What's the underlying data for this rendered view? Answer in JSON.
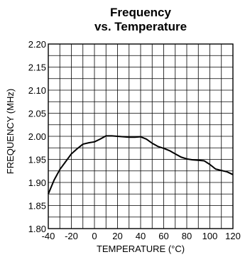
{
  "chart_data": {
    "type": "line",
    "title_lines": [
      "Frequency",
      "vs. Temperature"
    ],
    "xlabel": "TEMPERATURE (°C)",
    "ylabel": "FREQUENCY (MHz)",
    "xlim": [
      -40,
      120
    ],
    "ylim": [
      1.8,
      2.2
    ],
    "x_ticks": [
      -40,
      -20,
      0,
      20,
      40,
      60,
      80,
      100,
      120
    ],
    "x_tick_labels": [
      "-40",
      "-20",
      "0",
      "20",
      "40",
      "60",
      "80",
      "100",
      "120"
    ],
    "y_ticks": [
      1.8,
      1.85,
      1.9,
      1.95,
      2.0,
      2.05,
      2.1,
      2.15,
      2.2
    ],
    "y_tick_labels": [
      "1.80",
      "1.85",
      "1.90",
      "1.95",
      "2.00",
      "2.05",
      "2.10",
      "2.15",
      "2.20"
    ],
    "grid": true,
    "series": [
      {
        "x": [
          -40,
          -35,
          -30,
          -25,
          -20,
          -15,
          -10,
          -5,
          0,
          5,
          10,
          15,
          20,
          25,
          30,
          35,
          40,
          45,
          50,
          55,
          60,
          65,
          70,
          75,
          80,
          85,
          90,
          95,
          100,
          105,
          110,
          115,
          120
        ],
        "y": [
          1.875,
          1.905,
          1.928,
          1.945,
          1.962,
          1.973,
          1.983,
          1.986,
          1.988,
          1.994,
          2.001,
          2.001,
          2.0,
          1.999,
          1.998,
          1.998,
          1.999,
          1.994,
          1.985,
          1.978,
          1.974,
          1.969,
          1.962,
          1.955,
          1.951,
          1.949,
          1.948,
          1.947,
          1.939,
          1.929,
          1.926,
          1.923,
          1.917
        ]
      }
    ]
  }
}
